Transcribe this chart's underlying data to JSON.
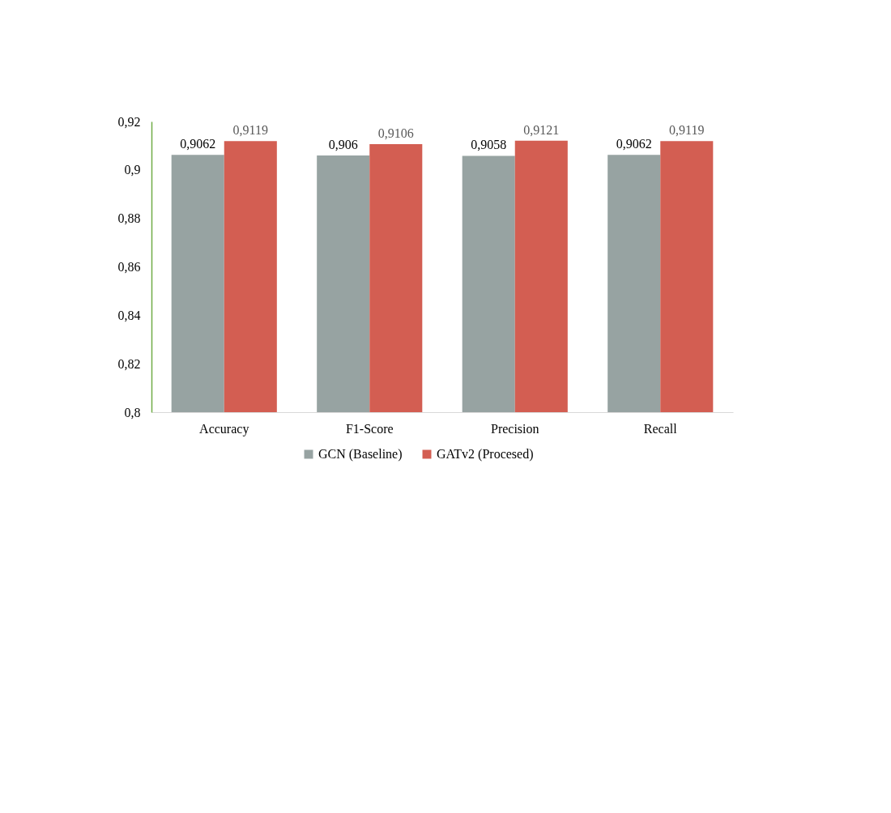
{
  "chart_data": {
    "type": "bar",
    "categories": [
      "Accuracy",
      "F1-Score",
      "Precision",
      "Recall"
    ],
    "series": [
      {
        "name": "GCN (Baseline)",
        "color": "#97a3a2",
        "values": [
          0.9062,
          0.906,
          0.9058,
          0.9062
        ],
        "value_labels": [
          "0,9062",
          "0,906",
          "0,9058",
          "0,9062"
        ]
      },
      {
        "name": "GATv2 (Procesed)",
        "color": "#d35e52",
        "values": [
          0.9119,
          0.9106,
          0.9121,
          0.9119
        ],
        "value_labels": [
          "0,9119",
          "0,9106",
          "0,9121",
          "0,9119"
        ]
      }
    ],
    "ylim": [
      0.8,
      0.92
    ],
    "yticks": [
      {
        "value": 0.8,
        "label": "0,8"
      },
      {
        "value": 0.82,
        "label": "0,82"
      },
      {
        "value": 0.84,
        "label": "0,84"
      },
      {
        "value": 0.86,
        "label": "0,86"
      },
      {
        "value": 0.88,
        "label": "0,88"
      },
      {
        "value": 0.9,
        "label": "0,9"
      },
      {
        "value": 0.92,
        "label": "0,92"
      }
    ],
    "legend": "bottom"
  }
}
